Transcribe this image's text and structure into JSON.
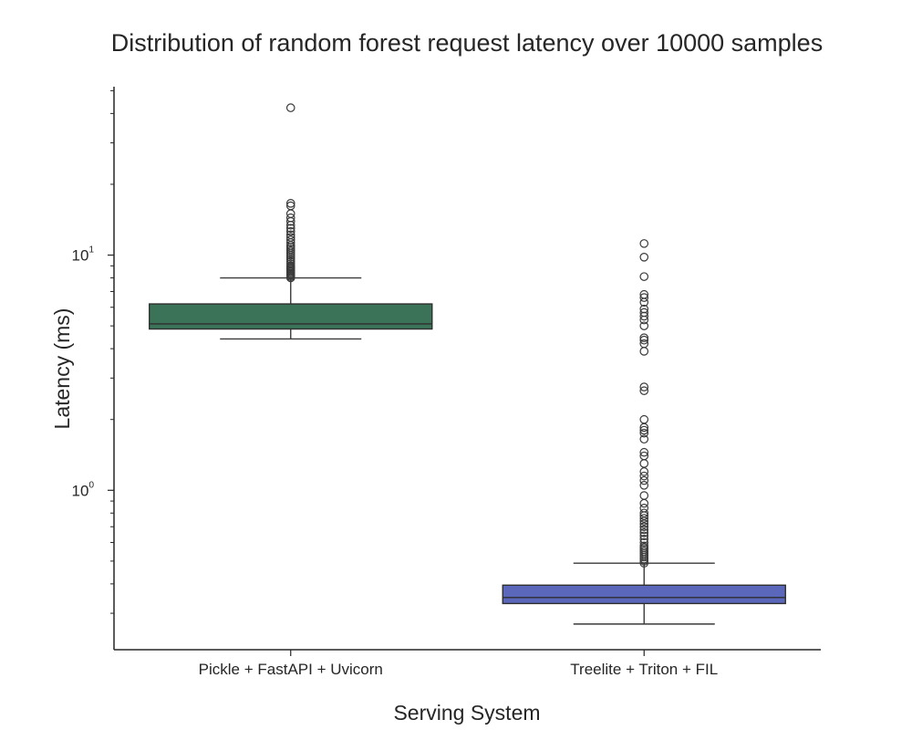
{
  "chart_data": {
    "type": "box",
    "title": "Distribution of random forest request latency over 10000 samples",
    "xlabel": "Serving System",
    "ylabel": "Latency (ms)",
    "yscale": "log",
    "ylim": [
      0.21,
      52
    ],
    "yticks": [
      {
        "value": 1,
        "base": "10",
        "exp": "0"
      },
      {
        "value": 10,
        "base": "10",
        "exp": "1"
      }
    ],
    "grid": false,
    "legend": "none",
    "categories": [
      "Pickle + FastAPI + Uvicorn",
      "Treelite + Triton + FIL"
    ],
    "series": [
      {
        "color": "#3b7358",
        "whisker_low": 4.4,
        "q1": 4.85,
        "median": 5.1,
        "q3": 6.2,
        "whisker_high": 8.0,
        "fliers": [
          8.0,
          8.1,
          8.2,
          8.3,
          8.4,
          8.5,
          8.6,
          8.7,
          8.8,
          8.9,
          9.0,
          9.2,
          9.4,
          9.6,
          9.8,
          10.0,
          10.2,
          10.4,
          10.6,
          10.8,
          11.0,
          11.3,
          11.6,
          11.9,
          12.2,
          12.6,
          13.0,
          13.4,
          13.9,
          14.4,
          15.0,
          16.2,
          16.6,
          42.3
        ]
      },
      {
        "color": "#5a67bb",
        "whisker_low": 0.27,
        "q1": 0.33,
        "median": 0.35,
        "q3": 0.395,
        "whisker_high": 0.49,
        "fliers": [
          0.49,
          0.5,
          0.51,
          0.52,
          0.53,
          0.54,
          0.55,
          0.56,
          0.57,
          0.58,
          0.6,
          0.62,
          0.64,
          0.66,
          0.68,
          0.7,
          0.72,
          0.74,
          0.76,
          0.78,
          0.8,
          0.84,
          0.88,
          0.95,
          1.05,
          1.1,
          1.15,
          1.2,
          1.3,
          1.4,
          1.45,
          1.65,
          1.75,
          1.8,
          1.85,
          2.0,
          2.65,
          2.75,
          3.9,
          4.2,
          4.35,
          4.45,
          5.0,
          5.3,
          5.5,
          5.7,
          5.9,
          6.3,
          6.6,
          6.8,
          8.1,
          9.8,
          11.2
        ]
      }
    ]
  }
}
